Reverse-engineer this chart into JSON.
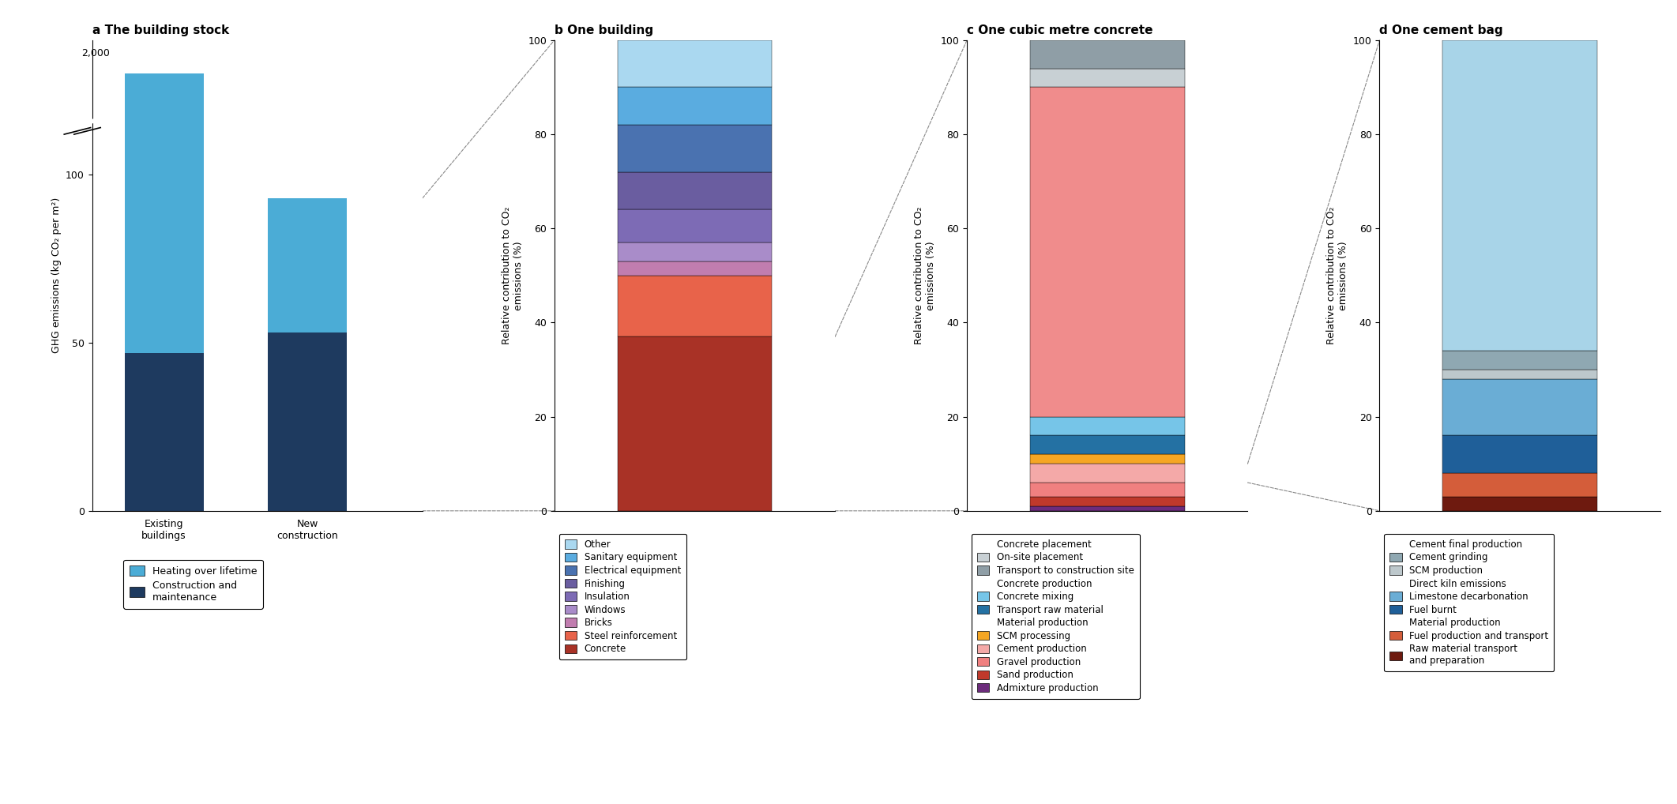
{
  "panel_a": {
    "title": "a The building stock",
    "ylabel": "GHG emissions (kg CO₂ per m²)",
    "categories": [
      "Existing\nbuildings",
      "New\nconstruction"
    ],
    "construction": [
      47,
      53
    ],
    "heating": [
      83,
      40
    ],
    "color_construction": "#1e3a5f",
    "color_heating": "#4bacd6",
    "legend": [
      {
        "label": "Heating over lifetime",
        "color": "#4bacd6"
      },
      {
        "label": "Construction and\nmaintenance",
        "color": "#1e3a5f"
      }
    ]
  },
  "panel_b": {
    "title": "b One building",
    "ylabel": "Relative contribution to CO₂\nemissions (%)",
    "segments": [
      {
        "label": "Concrete",
        "value": 37,
        "color": "#a93226"
      },
      {
        "label": "Steel reinforcement",
        "value": 13,
        "color": "#e8634a"
      },
      {
        "label": "Bricks",
        "value": 3,
        "color": "#c17daf"
      },
      {
        "label": "Windows",
        "value": 4,
        "color": "#a98cc9"
      },
      {
        "label": "Insulation",
        "value": 7,
        "color": "#7d6bb5"
      },
      {
        "label": "Finishing",
        "value": 8,
        "color": "#6a5da0"
      },
      {
        "label": "Electrical equipment",
        "value": 10,
        "color": "#4a72b0"
      },
      {
        "label": "Sanitary equipment",
        "value": 8,
        "color": "#5aace0"
      },
      {
        "label": "Other",
        "value": 10,
        "color": "#aad8f0"
      }
    ],
    "legend_order": [
      "Other",
      "Sanitary equipment",
      "Electrical equipment",
      "Finishing",
      "Insulation",
      "Windows",
      "Bricks",
      "Steel reinforcement",
      "Concrete"
    ]
  },
  "panel_c": {
    "title": "c One cubic metre concrete",
    "ylabel": "Relative contribution to CO₂\nemissions (%)",
    "segments": [
      {
        "label": "Admixture production",
        "value": 1,
        "color": "#6c2c7c"
      },
      {
        "label": "Sand production",
        "value": 2,
        "color": "#c0392b"
      },
      {
        "label": "Gravel production",
        "value": 3,
        "color": "#f08080"
      },
      {
        "label": "Cement production",
        "value": 4,
        "color": "#f4a9a8"
      },
      {
        "label": "SCM processing",
        "value": 2,
        "color": "#f5a623"
      },
      {
        "label": "Transport raw material",
        "value": 4,
        "color": "#2471a3"
      },
      {
        "label": "Concrete mixing",
        "value": 4,
        "color": "#76c5e8"
      },
      {
        "label": "Concrete placement",
        "value": 70,
        "color": "#f08c8c"
      },
      {
        "label": "On-site placement",
        "value": 4,
        "color": "#c8d0d4"
      },
      {
        "label": "Transport to construction site",
        "value": 6,
        "color": "#8f9ea6"
      }
    ],
    "legend_headers": {
      "Concrete placement": [],
      "Concrete production": [
        "Concrete mixing",
        "Transport raw material"
      ],
      "Material production": [
        "SCM processing",
        "Cement production",
        "Gravel production",
        "Sand production",
        "Admixture production"
      ]
    },
    "legend_order_top": [
      "On-site placement",
      "Transport to construction site"
    ],
    "legend_order_cp": [],
    "legend_order_concrete_prod": [
      "Concrete mixing",
      "Transport raw material"
    ],
    "legend_order_material": [
      "SCM processing",
      "Cement production",
      "Gravel production",
      "Sand production",
      "Admixture production"
    ]
  },
  "panel_d": {
    "title": "d One cement bag",
    "ylabel": "Relative contribution to CO₂\nemissions (%)",
    "segments": [
      {
        "label": "Raw material transport\nand preparation",
        "value": 3,
        "color": "#6e1a0f"
      },
      {
        "label": "Fuel production and transport",
        "value": 5,
        "color": "#d45d3a"
      },
      {
        "label": "Fuel burnt",
        "value": 8,
        "color": "#1f5f99"
      },
      {
        "label": "Limestone decarbonation",
        "value": 12,
        "color": "#6aadd5"
      },
      {
        "label": "SCM production",
        "value": 2,
        "color": "#bdc8cc"
      },
      {
        "label": "Cement grinding",
        "value": 4,
        "color": "#8fa8b2"
      },
      {
        "label": "Cement final production",
        "value": 66,
        "color": "#a8d4e8"
      }
    ]
  }
}
